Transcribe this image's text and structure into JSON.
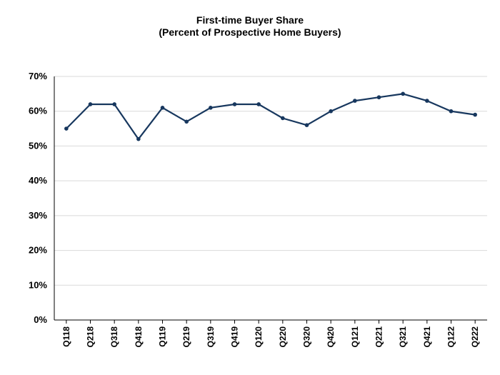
{
  "chart_data": {
    "type": "line",
    "title": "First-time Buyer Share",
    "subtitle": "(Percent of Prospective Home Buyers)",
    "xlabel": "",
    "ylabel": "",
    "categories": [
      "Q118",
      "Q218",
      "Q318",
      "Q418",
      "Q119",
      "Q219",
      "Q319",
      "Q419",
      "Q120",
      "Q220",
      "Q320",
      "Q420",
      "Q121",
      "Q221",
      "Q321",
      "Q421",
      "Q122",
      "Q222"
    ],
    "series": [
      {
        "name": "First-time Buyer Share",
        "values": [
          55,
          62,
          62,
          52,
          61,
          57,
          61,
          62,
          62,
          58,
          56,
          60,
          63,
          64,
          65,
          63,
          60,
          59
        ],
        "color": "#17375e"
      }
    ],
    "ylim": [
      0,
      70
    ],
    "yticks": [
      0,
      10,
      20,
      30,
      40,
      50,
      60,
      70
    ],
    "ytick_labels": [
      "0%",
      "10%",
      "20%",
      "30%",
      "40%",
      "50%",
      "60%",
      "70%"
    ],
    "grid": true,
    "legend": "none"
  }
}
